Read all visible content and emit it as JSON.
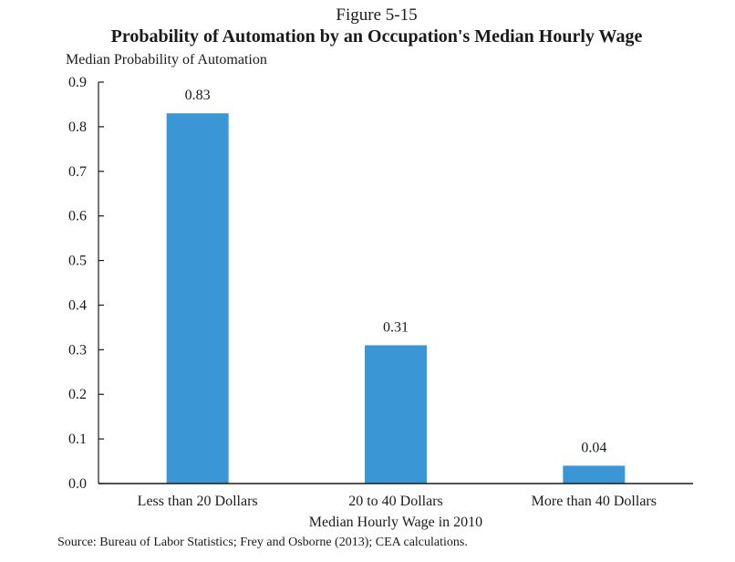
{
  "chart_data": {
    "type": "bar",
    "figure_label": "Figure 5-15",
    "title": "Probability of Automation by an Occupation's Median Hourly Wage",
    "ylabel": "Median Probability of Automation",
    "xlabel": "Median Hourly Wage in 2010",
    "source": "Source: Bureau of Labor Statistics; Frey and Osborne (2013); CEA calculations.",
    "categories": [
      "Less than 20 Dollars",
      "20 to 40 Dollars",
      "More than 40 Dollars"
    ],
    "values": [
      0.83,
      0.31,
      0.04
    ],
    "data_labels": [
      "0.83",
      "0.31",
      "0.04"
    ],
    "ylim": [
      0,
      0.9
    ],
    "yticks": [
      0.0,
      0.1,
      0.2,
      0.3,
      0.4,
      0.5,
      0.6,
      0.7,
      0.8,
      0.9
    ],
    "ytick_labels": [
      "0.0",
      "0.1",
      "0.2",
      "0.3",
      "0.4",
      "0.5",
      "0.6",
      "0.7",
      "0.8",
      "0.9"
    ],
    "grid": false,
    "legend": "none",
    "bar_color": "#3b96d6"
  }
}
